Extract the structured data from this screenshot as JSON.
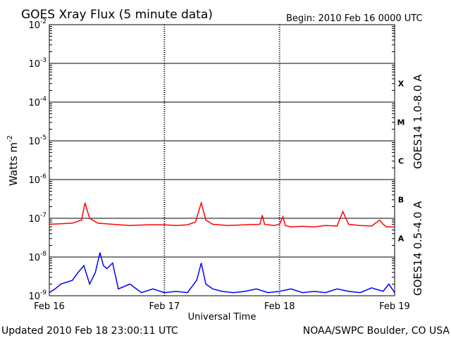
{
  "chart_data": {
    "type": "line",
    "title": "GOES Xray Flux (5 minute data)",
    "begin_label": "Begin:  2010 Feb 16 0000 UTC",
    "ylabel_main": "Watts m",
    "ylabel_exp": "-2",
    "xlabel": "Universal Time",
    "yscale": "log",
    "ylim": [
      1e-09,
      0.01
    ],
    "ytick_base": "10",
    "ytick_exponents": [
      "-9",
      "-8",
      "-7",
      "-6",
      "-5",
      "-4",
      "-3",
      "-2"
    ],
    "x_categories": [
      "Feb 16",
      "Feb 17",
      "Feb 18",
      "Feb 19"
    ],
    "x_range_days": [
      0,
      3
    ],
    "flare_classes": [
      "A",
      "B",
      "C",
      "M",
      "X"
    ],
    "series": [
      {
        "name": "GOES14 1.0-8.0 A",
        "color": "#ff0000",
        "x_days": [
          0,
          0.1,
          0.2,
          0.28,
          0.31,
          0.35,
          0.42,
          0.55,
          0.7,
          0.85,
          1.0,
          1.1,
          1.2,
          1.27,
          1.32,
          1.36,
          1.42,
          1.55,
          1.7,
          1.83,
          1.85,
          1.87,
          1.95,
          2.0,
          2.03,
          2.05,
          2.1,
          2.2,
          2.3,
          2.4,
          2.5,
          2.55,
          2.6,
          2.7,
          2.8,
          2.87,
          2.9,
          2.93,
          3.0
        ],
        "y": [
          7e-08,
          7.2e-08,
          7.5e-08,
          9e-08,
          2.5e-07,
          1e-07,
          7.5e-08,
          7e-08,
          6.5e-08,
          6.8e-08,
          6.8e-08,
          6.5e-08,
          6.8e-08,
          8e-08,
          2.5e-07,
          9e-08,
          7e-08,
          6.5e-08,
          6.8e-08,
          7e-08,
          1.2e-07,
          7e-08,
          6.5e-08,
          7e-08,
          1.1e-07,
          6.5e-08,
          6e-08,
          6.2e-08,
          6e-08,
          6.5e-08,
          6.3e-08,
          1.5e-07,
          7e-08,
          6.5e-08,
          6.3e-08,
          9e-08,
          7e-08,
          6e-08,
          6e-08
        ]
      },
      {
        "name": "GOES14 0.5-4.0 A",
        "color": "#0000ff",
        "x_days": [
          0,
          0.05,
          0.1,
          0.2,
          0.25,
          0.3,
          0.35,
          0.4,
          0.44,
          0.47,
          0.5,
          0.55,
          0.6,
          0.7,
          0.8,
          0.9,
          1.0,
          1.1,
          1.2,
          1.28,
          1.32,
          1.36,
          1.42,
          1.5,
          1.6,
          1.7,
          1.8,
          1.9,
          2.0,
          2.1,
          2.2,
          2.3,
          2.4,
          2.5,
          2.6,
          2.7,
          2.8,
          2.9,
          2.95,
          3.0
        ],
        "y": [
          1.2e-09,
          1.5e-09,
          2e-09,
          2.5e-09,
          4e-09,
          6e-09,
          2e-09,
          4e-09,
          1.3e-08,
          6e-09,
          5e-09,
          7e-09,
          1.5e-09,
          2e-09,
          1.2e-09,
          1.5e-09,
          1.2e-09,
          1.3e-09,
          1.2e-09,
          2.5e-09,
          7e-09,
          2e-09,
          1.5e-09,
          1.3e-09,
          1.2e-09,
          1.3e-09,
          1.5e-09,
          1.2e-09,
          1.3e-09,
          1.5e-09,
          1.2e-09,
          1.3e-09,
          1.2e-09,
          1.5e-09,
          1.3e-09,
          1.2e-09,
          1.6e-09,
          1.3e-09,
          2e-09,
          1.2e-09
        ]
      }
    ]
  },
  "footer": {
    "updated": "Updated 2010 Feb 18 23:00:11 UTC",
    "credit": "NOAA/SWPC Boulder, CO USA"
  }
}
